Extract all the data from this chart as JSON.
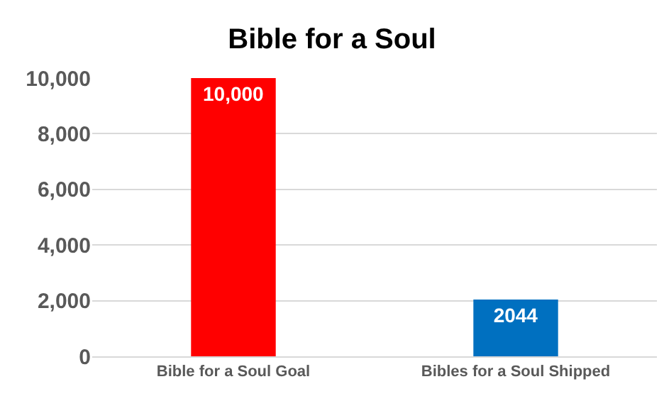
{
  "chart_data": {
    "type": "bar",
    "title": "Bible for a Soul",
    "categories": [
      "Bible for a Soul Goal",
      "Bibles for a Soul Shipped"
    ],
    "values": [
      10000,
      2044
    ],
    "colors": [
      "#ff0000",
      "#0070c0"
    ],
    "value_labels": [
      "10,000",
      "2044"
    ],
    "ylim": [
      0,
      10000
    ],
    "yticks": [
      {
        "value": 0,
        "label": "0"
      },
      {
        "value": 2000,
        "label": "2,000"
      },
      {
        "value": 4000,
        "label": "4,000"
      },
      {
        "value": 6000,
        "label": "6,000"
      },
      {
        "value": 8000,
        "label": "8,000"
      },
      {
        "value": 10000,
        "label": "10,000"
      }
    ],
    "grid": "y",
    "legend": false
  }
}
